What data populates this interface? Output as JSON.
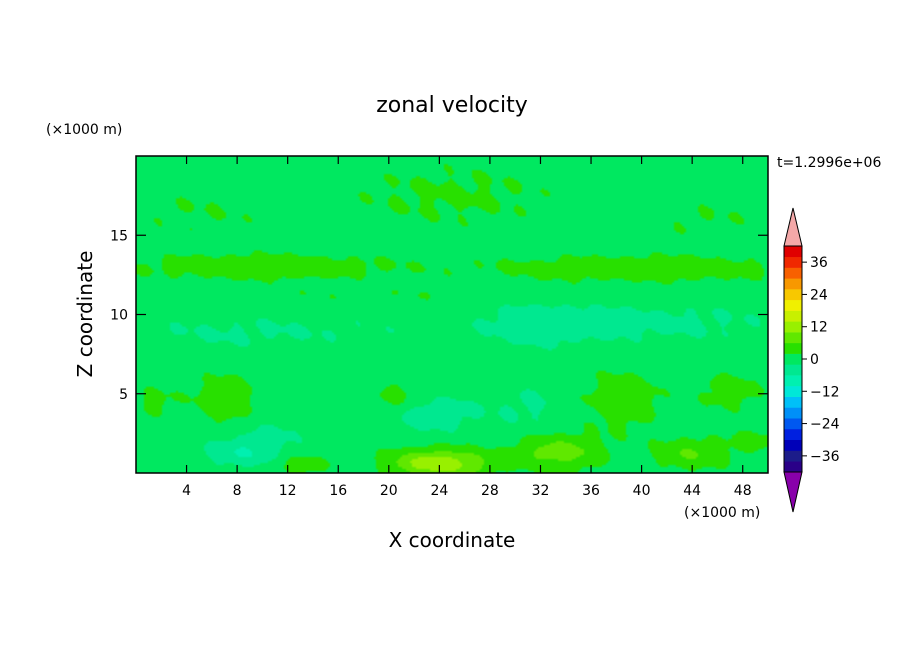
{
  "chart_data": {
    "type": "heatmap",
    "title": "zonal velocity",
    "xlabel": "X coordinate",
    "ylabel": "Z coordinate",
    "x_unit": "(×1000 m)",
    "y_unit": "(×1000 m)",
    "time_label": "t=1.2996e+06",
    "xlim": [
      0,
      50
    ],
    "ylim": [
      0,
      20
    ],
    "x_ticks": [
      4,
      8,
      12,
      16,
      20,
      24,
      28,
      32,
      36,
      40,
      44,
      48
    ],
    "y_ticks": [
      5,
      10,
      15
    ],
    "colorbar": {
      "min": -42,
      "max": 42,
      "step": 4,
      "labels": [
        36,
        24,
        12,
        0,
        -12,
        -24,
        -36
      ],
      "over_color": "#f4a8a8",
      "under_color": "#8800aa",
      "colors": [
        "#2a0088",
        "#1c1c8a",
        "#0000b8",
        "#0020e0",
        "#0058f0",
        "#0090f8",
        "#00c0f8",
        "#00e8d8",
        "#00f0b0",
        "#00e890",
        "#00e860",
        "#28e000",
        "#60e800",
        "#98f000",
        "#c8f000",
        "#f0f000",
        "#f8c800",
        "#f89800",
        "#f86000",
        "#f02800",
        "#e00000"
      ]
    },
    "field": {
      "background": 0,
      "blobs": [
        {
          "x": 25,
          "z": 17.5,
          "sx": 9,
          "sz": 2.2,
          "v": 2.5
        },
        {
          "x": 5,
          "z": 16.5,
          "sx": 7,
          "sz": 1.8,
          "v": 1.8
        },
        {
          "x": 45,
          "z": 16,
          "sx": 6,
          "sz": 1.6,
          "v": 1.8
        },
        {
          "x": 10,
          "z": 13,
          "sx": 10,
          "sz": 0.8,
          "v": 5
        },
        {
          "x": 40,
          "z": 12.9,
          "sx": 12,
          "sz": 0.8,
          "v": 5
        },
        {
          "x": 25,
          "z": 11.2,
          "sx": 30,
          "sz": 0.6,
          "v": 1.5
        },
        {
          "x": 10,
          "z": 8.8,
          "sx": 12,
          "sz": 1.2,
          "v": -2.5
        },
        {
          "x": 40,
          "z": 9.5,
          "sx": 11,
          "sz": 1.3,
          "v": -3
        },
        {
          "x": 32,
          "z": 9.4,
          "sx": 4,
          "sz": 1.4,
          "v": -3.5
        },
        {
          "x": 14,
          "z": 7,
          "sx": 5,
          "sz": 1.5,
          "v": 1.3
        },
        {
          "x": 7,
          "z": 4.6,
          "sx": 2.3,
          "sz": 1.6,
          "v": 5
        },
        {
          "x": 21,
          "z": 4.6,
          "sx": 2.5,
          "sz": 1.2,
          "v": 4.5
        },
        {
          "x": 38.5,
          "z": 4.6,
          "sx": 3,
          "sz": 1.8,
          "v": 5
        },
        {
          "x": 47,
          "z": 5.2,
          "sx": 2.5,
          "sz": 1.2,
          "v": 4
        },
        {
          "x": 23,
          "z": 3.8,
          "sx": 3.5,
          "sz": 1.1,
          "v": -6
        },
        {
          "x": 31,
          "z": 4.2,
          "sx": 3,
          "sz": 1.5,
          "v": -2.5
        },
        {
          "x": 11,
          "z": 2.7,
          "sx": 3,
          "sz": 0.9,
          "v": -2.5
        },
        {
          "x": 8.5,
          "z": 1.3,
          "sx": 3,
          "sz": 0.9,
          "v": -6
        },
        {
          "x": 24,
          "z": 0.6,
          "sx": 4,
          "sz": 0.9,
          "v": 13
        },
        {
          "x": 33.5,
          "z": 1.3,
          "sx": 3.5,
          "sz": 1.1,
          "v": 8
        },
        {
          "x": 44,
          "z": 1.2,
          "sx": 3,
          "sz": 1,
          "v": 6
        },
        {
          "x": 13,
          "z": 0.5,
          "sx": 2,
          "sz": 0.6,
          "v": 5
        },
        {
          "x": 1.5,
          "z": 4.5,
          "sx": 2,
          "sz": 1,
          "v": 3
        },
        {
          "x": 49,
          "z": 2.2,
          "sx": 2,
          "sz": 1,
          "v": 3
        }
      ]
    }
  }
}
